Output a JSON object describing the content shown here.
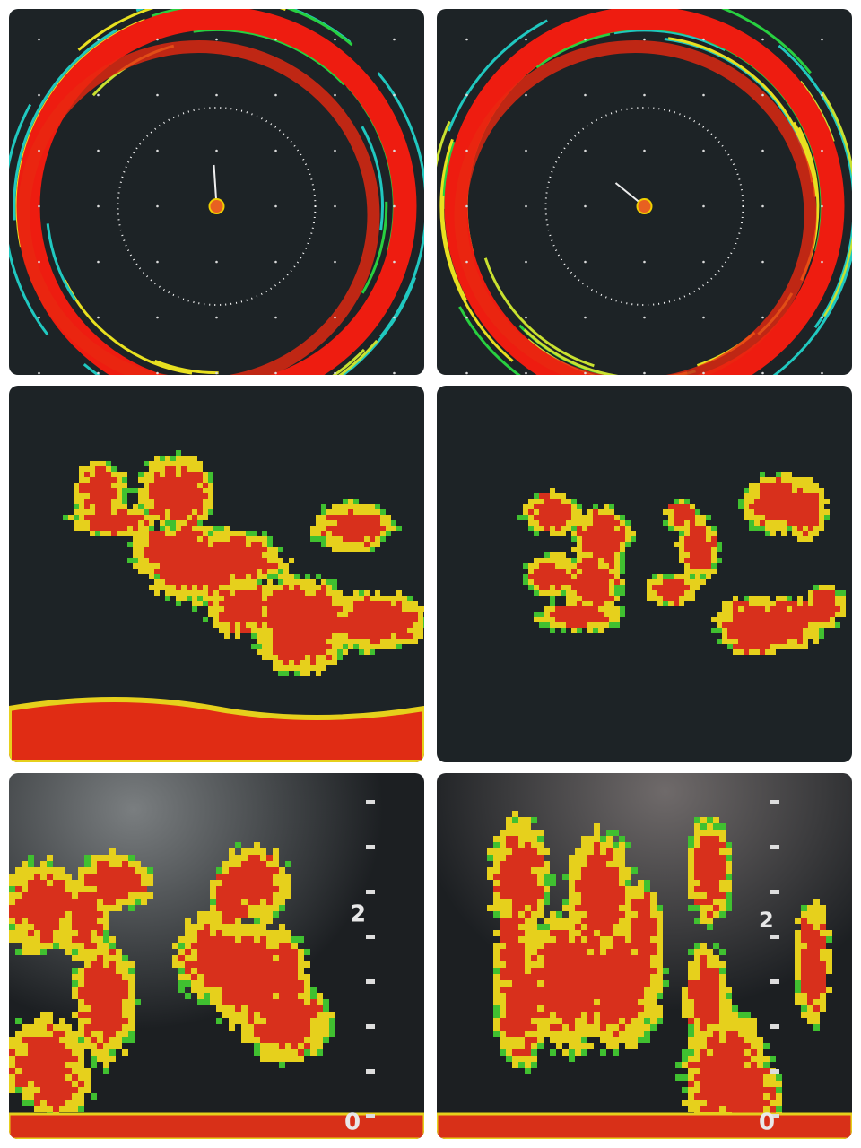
{
  "panels": [
    {
      "kind": "radar"
    },
    {
      "kind": "radar"
    },
    {
      "kind": "echo"
    },
    {
      "kind": "echo"
    },
    {
      "kind": "column",
      "labels": [
        "2",
        "0"
      ]
    },
    {
      "kind": "column",
      "labels": [
        "2",
        "0"
      ]
    }
  ]
}
